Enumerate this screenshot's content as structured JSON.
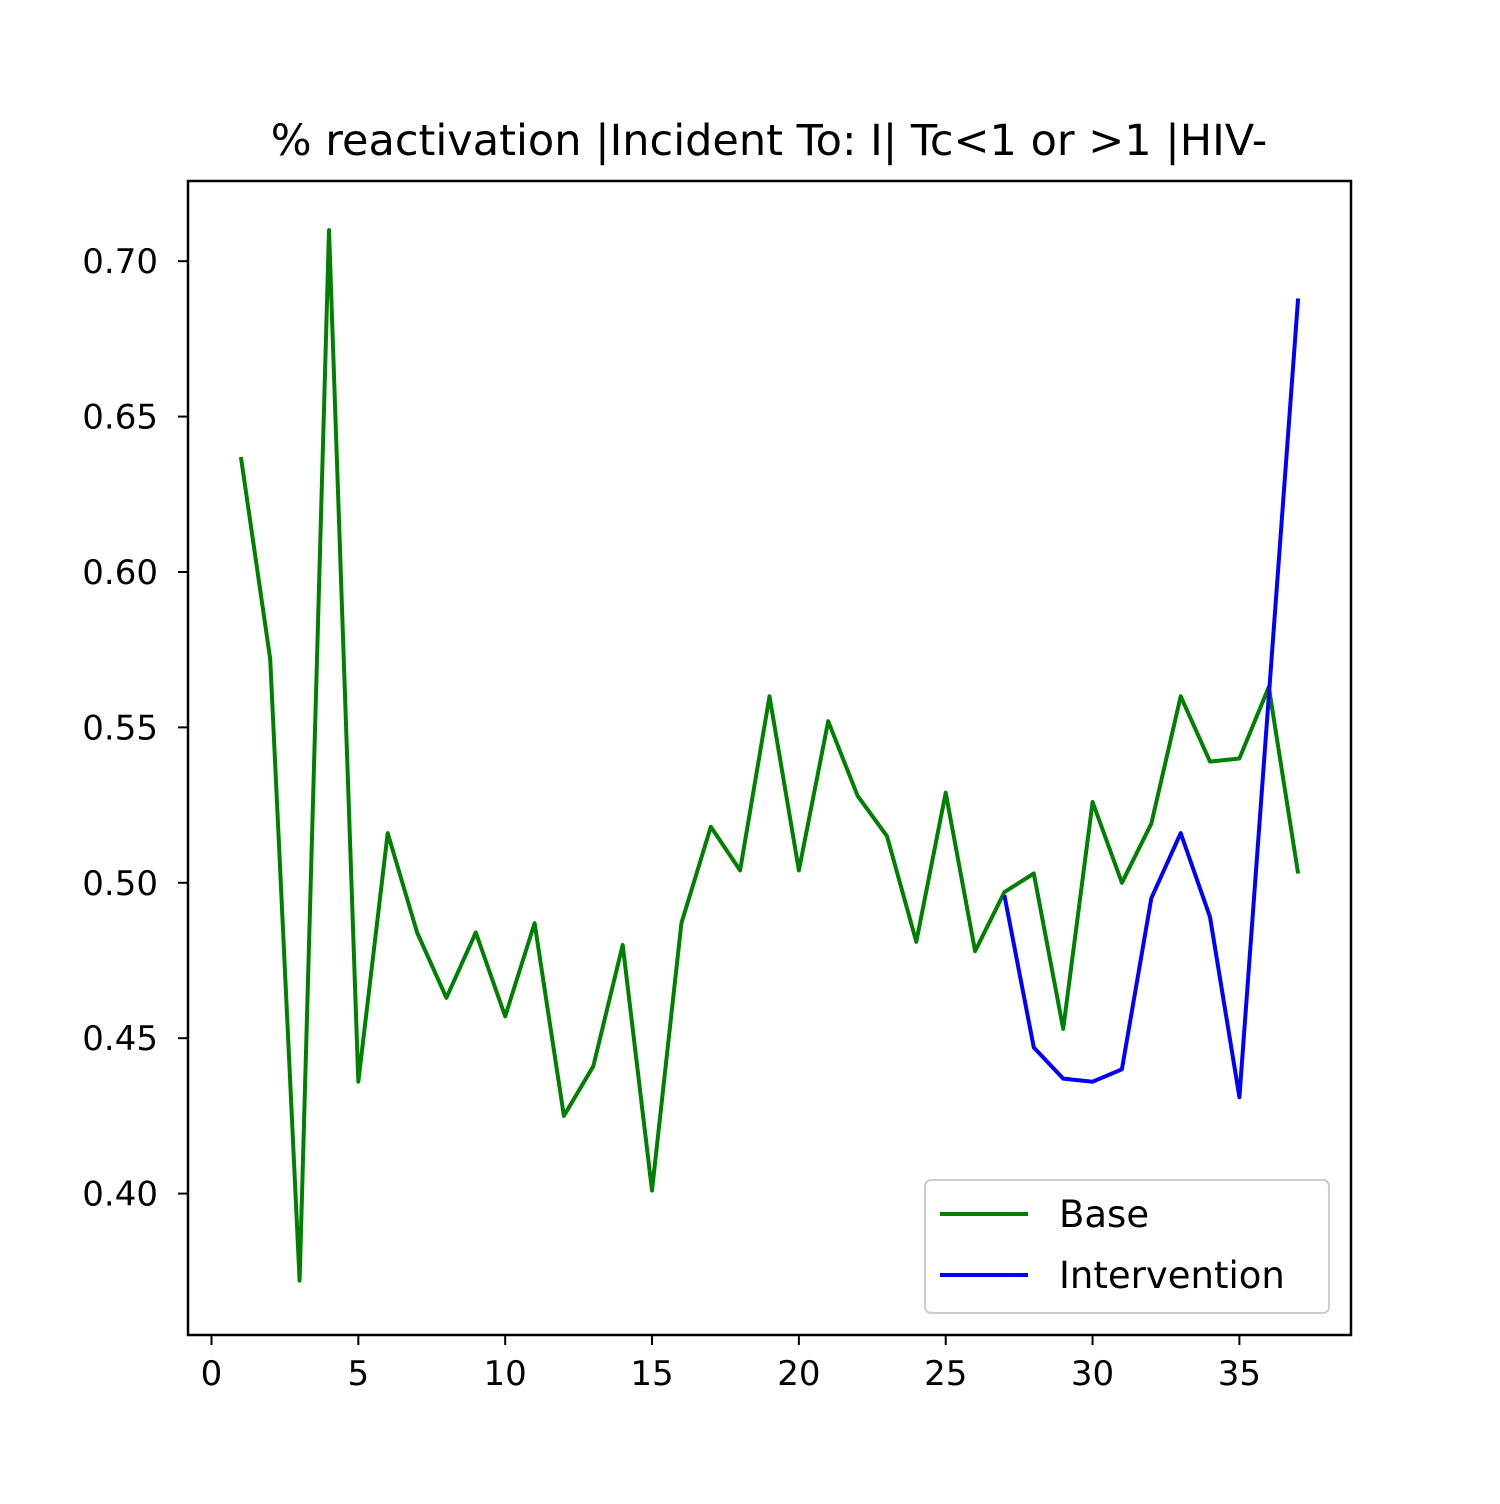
{
  "chart_data": {
    "type": "line",
    "title": "% reactivation |Incident To: I| Tc<1 or >1 |HIV-",
    "xlabel": "",
    "ylabel": "",
    "xlim": [
      -0.8,
      38.8
    ],
    "ylim": [
      0.3545,
      0.7258
    ],
    "xticks": [
      0,
      5,
      10,
      15,
      20,
      25,
      30,
      35
    ],
    "xtick_labels": [
      "0",
      "5",
      "10",
      "15",
      "20",
      "25",
      "30",
      "35"
    ],
    "yticks": [
      0.4,
      0.45,
      0.5,
      0.55,
      0.6,
      0.65,
      0.7
    ],
    "ytick_labels": [
      "0.40",
      "0.45",
      "0.50",
      "0.55",
      "0.60",
      "0.65",
      "0.70"
    ],
    "grid": false,
    "legend_position": "lower-right",
    "series": [
      {
        "name": "Base",
        "color": "#008000",
        "x": [
          1,
          2,
          3,
          4,
          5,
          6,
          7,
          8,
          9,
          10,
          11,
          12,
          13,
          14,
          15,
          16,
          17,
          18,
          19,
          20,
          21,
          22,
          23,
          24,
          25,
          26,
          27,
          28,
          29,
          30,
          31,
          32,
          33,
          34,
          35,
          36,
          37
        ],
        "values": [
          0.637,
          0.572,
          0.372,
          0.71,
          0.436,
          0.516,
          0.484,
          0.463,
          0.484,
          0.457,
          0.487,
          0.425,
          0.441,
          0.48,
          0.401,
          0.487,
          0.518,
          0.504,
          0.56,
          0.504,
          0.552,
          0.528,
          0.515,
          0.481,
          0.529,
          0.478,
          0.497,
          0.503,
          0.453,
          0.526,
          0.5,
          0.519,
          0.56,
          0.539,
          0.54,
          0.563,
          0.503
        ]
      },
      {
        "name": "Intervention",
        "color": "#0000ff",
        "x": [
          27,
          28,
          29,
          30,
          31,
          32,
          33,
          34,
          35,
          36,
          37
        ],
        "values": [
          0.496,
          0.447,
          0.437,
          0.436,
          0.44,
          0.495,
          0.516,
          0.489,
          0.431,
          0.56,
          0.688
        ]
      }
    ]
  }
}
